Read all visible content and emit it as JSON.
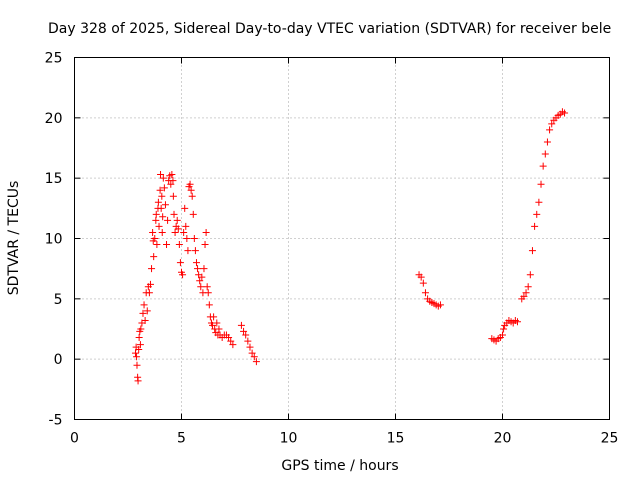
{
  "chart_data": {
    "type": "scatter",
    "title": "Day 328 of 2025, Sidereal Day-to-day VTEC variation (SDTVAR) for receiver bele",
    "xlabel": "GPS time / hours",
    "ylabel": "SDTVAR / TECUs",
    "xlim": [
      0,
      25
    ],
    "ylim": [
      -5,
      25
    ],
    "xticks": [
      0,
      5,
      10,
      15,
      20,
      25
    ],
    "yticks": [
      -5,
      0,
      5,
      10,
      15,
      20,
      25
    ],
    "xtick_labels": [
      "0",
      "5",
      "10",
      "15",
      "20",
      "25"
    ],
    "ytick_labels": [
      "-5",
      "0",
      "5",
      "10",
      "15",
      "20",
      "25"
    ],
    "grid": true,
    "marker": "plus",
    "color": "#ff0000",
    "series": [
      {
        "name": "SDTVAR",
        "points": [
          [
            2.85,
            0.5
          ],
          [
            2.88,
            1.0
          ],
          [
            2.9,
            0.2
          ],
          [
            2.92,
            -0.5
          ],
          [
            2.95,
            -1.5
          ],
          [
            2.97,
            -1.8
          ],
          [
            3.0,
            0.8
          ],
          [
            3.02,
            1.8
          ],
          [
            3.05,
            2.3
          ],
          [
            3.08,
            1.2
          ],
          [
            3.1,
            2.5
          ],
          [
            3.15,
            3.0
          ],
          [
            3.2,
            3.8
          ],
          [
            3.25,
            4.5
          ],
          [
            3.3,
            3.2
          ],
          [
            3.35,
            5.5
          ],
          [
            3.4,
            4.0
          ],
          [
            3.45,
            6.0
          ],
          [
            3.5,
            5.5
          ],
          [
            3.55,
            6.2
          ],
          [
            3.6,
            7.5
          ],
          [
            3.65,
            10.5
          ],
          [
            3.68,
            9.8
          ],
          [
            3.7,
            8.5
          ],
          [
            3.75,
            10.0
          ],
          [
            3.8,
            11.5
          ],
          [
            3.82,
            12.0
          ],
          [
            3.85,
            9.5
          ],
          [
            3.9,
            12.5
          ],
          [
            3.92,
            13.0
          ],
          [
            3.95,
            11.0
          ],
          [
            4.0,
            14.0
          ],
          [
            4.02,
            15.3
          ],
          [
            4.05,
            12.5
          ],
          [
            4.08,
            13.5
          ],
          [
            4.1,
            10.5
          ],
          [
            4.12,
            11.8
          ],
          [
            4.15,
            15.0
          ],
          [
            4.2,
            14.2
          ],
          [
            4.25,
            12.8
          ],
          [
            4.3,
            9.5
          ],
          [
            4.35,
            11.5
          ],
          [
            4.4,
            14.8
          ],
          [
            4.45,
            15.2
          ],
          [
            4.5,
            14.5
          ],
          [
            4.55,
            15.3
          ],
          [
            4.6,
            14.8
          ],
          [
            4.62,
            13.5
          ],
          [
            4.65,
            12.0
          ],
          [
            4.7,
            10.5
          ],
          [
            4.75,
            11.0
          ],
          [
            4.8,
            11.5
          ],
          [
            4.85,
            10.8
          ],
          [
            4.9,
            9.5
          ],
          [
            4.95,
            8.0
          ],
          [
            5.0,
            7.2
          ],
          [
            5.05,
            7.0
          ],
          [
            5.1,
            10.5
          ],
          [
            5.15,
            12.5
          ],
          [
            5.2,
            11.0
          ],
          [
            5.25,
            10.0
          ],
          [
            5.3,
            9.0
          ],
          [
            5.35,
            14.3
          ],
          [
            5.4,
            14.5
          ],
          [
            5.45,
            14.0
          ],
          [
            5.5,
            13.5
          ],
          [
            5.55,
            12.0
          ],
          [
            5.6,
            10.0
          ],
          [
            5.65,
            9.0
          ],
          [
            5.7,
            8.0
          ],
          [
            5.75,
            7.5
          ],
          [
            5.8,
            7.0
          ],
          [
            5.85,
            6.5
          ],
          [
            5.9,
            6.0
          ],
          [
            5.95,
            6.8
          ],
          [
            6.0,
            5.5
          ],
          [
            6.05,
            7.5
          ],
          [
            6.1,
            9.5
          ],
          [
            6.15,
            10.5
          ],
          [
            6.2,
            6.0
          ],
          [
            6.25,
            5.5
          ],
          [
            6.3,
            4.5
          ],
          [
            6.35,
            3.5
          ],
          [
            6.4,
            3.0
          ],
          [
            6.45,
            2.8
          ],
          [
            6.5,
            3.5
          ],
          [
            6.55,
            2.5
          ],
          [
            6.6,
            2.2
          ],
          [
            6.65,
            3.0
          ],
          [
            6.7,
            2.0
          ],
          [
            6.75,
            2.5
          ],
          [
            6.8,
            2.0
          ],
          [
            6.9,
            1.8
          ],
          [
            7.0,
            2.0
          ],
          [
            7.1,
            2.0
          ],
          [
            7.2,
            1.8
          ],
          [
            7.3,
            1.5
          ],
          [
            7.4,
            1.2
          ],
          [
            7.8,
            2.8
          ],
          [
            7.9,
            2.3
          ],
          [
            8.0,
            2.0
          ],
          [
            8.1,
            1.5
          ],
          [
            8.2,
            1.0
          ],
          [
            8.3,
            0.5
          ],
          [
            8.4,
            0.2
          ],
          [
            8.5,
            -0.2
          ],
          [
            16.1,
            7.0
          ],
          [
            16.2,
            6.8
          ],
          [
            16.3,
            6.3
          ],
          [
            16.4,
            5.5
          ],
          [
            16.5,
            5.0
          ],
          [
            16.6,
            4.8
          ],
          [
            16.7,
            4.7
          ],
          [
            16.8,
            4.6
          ],
          [
            16.9,
            4.5
          ],
          [
            17.0,
            4.4
          ],
          [
            17.1,
            4.5
          ],
          [
            19.5,
            1.7
          ],
          [
            19.6,
            1.6
          ],
          [
            19.7,
            1.5
          ],
          [
            19.8,
            1.7
          ],
          [
            19.9,
            1.8
          ],
          [
            20.0,
            2.0
          ],
          [
            20.05,
            2.5
          ],
          [
            20.1,
            2.8
          ],
          [
            20.2,
            3.0
          ],
          [
            20.3,
            3.2
          ],
          [
            20.4,
            3.1
          ],
          [
            20.5,
            3.0
          ],
          [
            20.6,
            3.2
          ],
          [
            20.7,
            3.1
          ],
          [
            20.9,
            5.0
          ],
          [
            21.0,
            5.2
          ],
          [
            21.1,
            5.5
          ],
          [
            21.2,
            6.0
          ],
          [
            21.3,
            7.0
          ],
          [
            21.4,
            9.0
          ],
          [
            21.5,
            11.0
          ],
          [
            21.6,
            12.0
          ],
          [
            21.7,
            13.0
          ],
          [
            21.8,
            14.5
          ],
          [
            21.9,
            16.0
          ],
          [
            22.0,
            17.0
          ],
          [
            22.1,
            18.0
          ],
          [
            22.2,
            19.0
          ],
          [
            22.3,
            19.5
          ],
          [
            22.4,
            19.8
          ],
          [
            22.5,
            20.0
          ],
          [
            22.6,
            20.2
          ],
          [
            22.7,
            20.3
          ],
          [
            22.8,
            20.5
          ],
          [
            22.9,
            20.4
          ]
        ]
      }
    ]
  }
}
